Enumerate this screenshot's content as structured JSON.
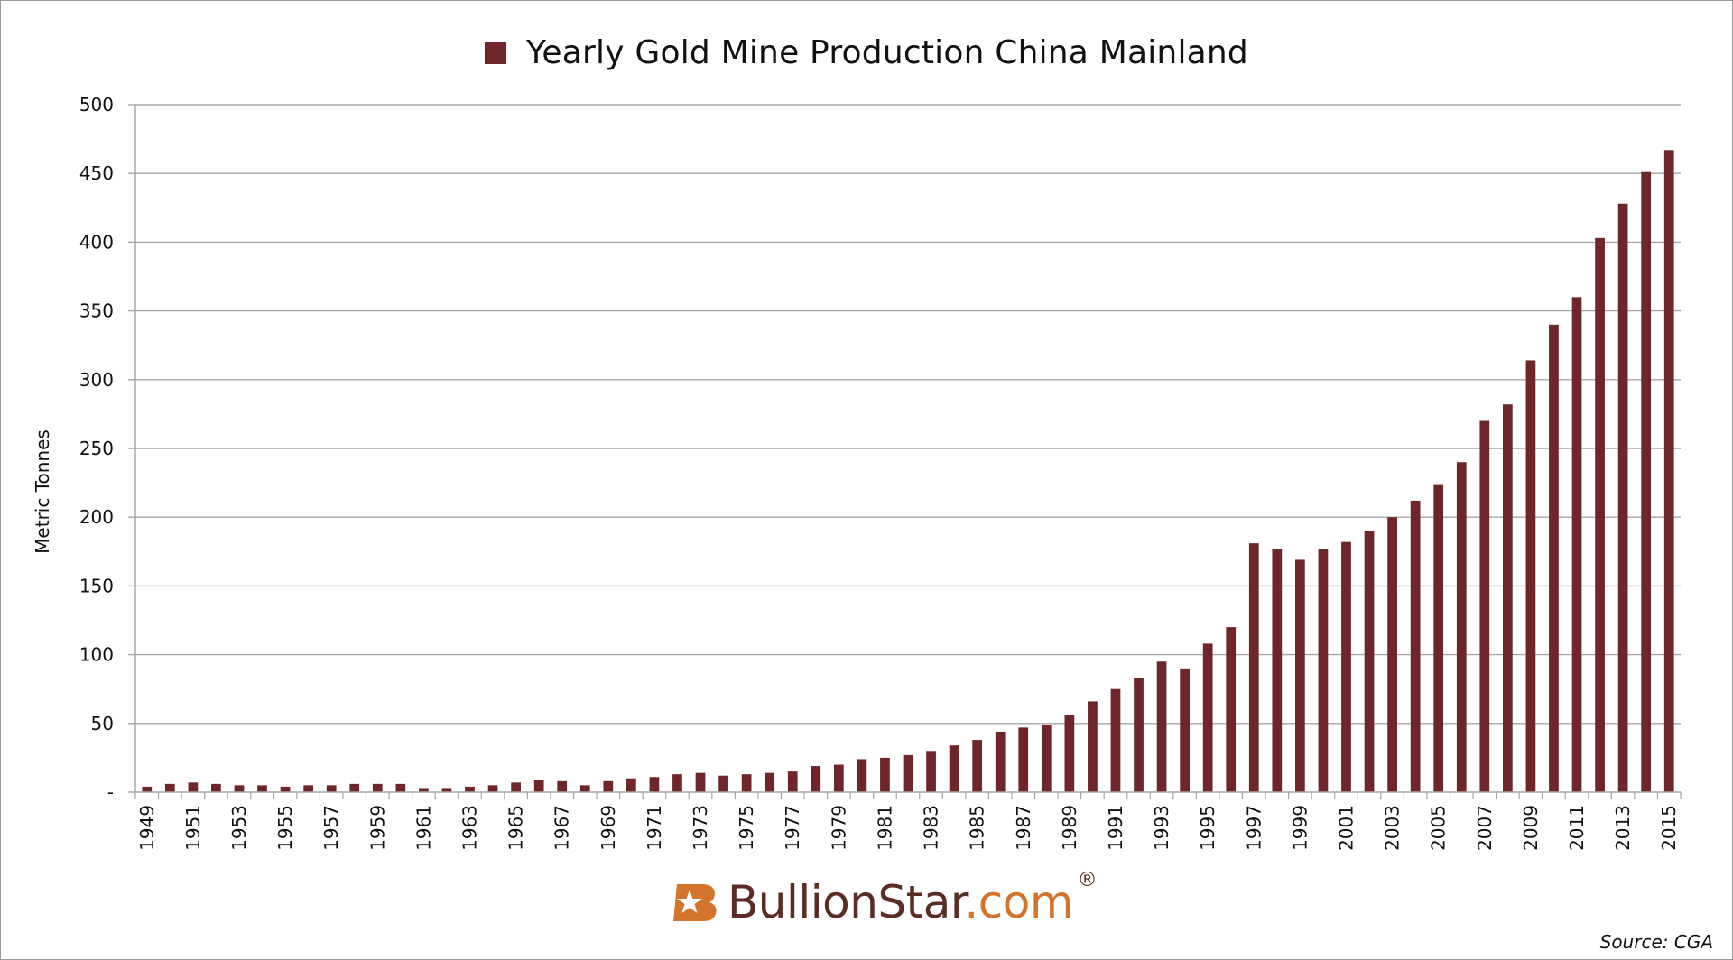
{
  "chart_data": {
    "type": "bar",
    "title": "",
    "legend": [
      "Yearly Gold Mine Production China Mainland"
    ],
    "legend_position": "top-center",
    "ylabel": "Metric Tonnes",
    "xlabel": "",
    "ylim": [
      0,
      500
    ],
    "yticks": [
      "-",
      "50",
      "100",
      "150",
      "200",
      "250",
      "300",
      "350",
      "400",
      "450",
      "500"
    ],
    "grid": true,
    "bar_color": "#6e2629",
    "categories": [
      "1949",
      "1950",
      "1951",
      "1952",
      "1953",
      "1954",
      "1955",
      "1956",
      "1957",
      "1958",
      "1959",
      "1960",
      "1961",
      "1962",
      "1963",
      "1964",
      "1965",
      "1966",
      "1967",
      "1968",
      "1969",
      "1970",
      "1971",
      "1972",
      "1973",
      "1974",
      "1975",
      "1976",
      "1977",
      "1978",
      "1979",
      "1980",
      "1981",
      "1982",
      "1983",
      "1984",
      "1985",
      "1986",
      "1987",
      "1988",
      "1989",
      "1990",
      "1991",
      "1992",
      "1993",
      "1994",
      "1995",
      "1996",
      "1997",
      "1998",
      "1999",
      "2000",
      "2001",
      "2002",
      "2003",
      "2004",
      "2005",
      "2006",
      "2007",
      "2008",
      "2009",
      "2010",
      "2011",
      "2012",
      "2013",
      "2014",
      "2015"
    ],
    "xtick_labels": [
      "1949",
      "1951",
      "1953",
      "1955",
      "1957",
      "1959",
      "1961",
      "1963",
      "1965",
      "1967",
      "1969",
      "1971",
      "1973",
      "1975",
      "1977",
      "1979",
      "1981",
      "1983",
      "1985",
      "1987",
      "1989",
      "1991",
      "1993",
      "1995",
      "1997",
      "1999",
      "2001",
      "2003",
      "2005",
      "2007",
      "2009",
      "2011",
      "2013",
      "2015"
    ],
    "series": [
      {
        "name": "Yearly Gold Mine Production China Mainland",
        "values": [
          4,
          6,
          7,
          6,
          5,
          5,
          4,
          5,
          5,
          6,
          6,
          6,
          3,
          3,
          4,
          5,
          7,
          9,
          8,
          5,
          8,
          10,
          11,
          13,
          14,
          12,
          13,
          14,
          15,
          19,
          20,
          24,
          25,
          27,
          30,
          34,
          38,
          44,
          47,
          49,
          56,
          66,
          75,
          83,
          95,
          90,
          108,
          120,
          181,
          177,
          169,
          177,
          182,
          190,
          200,
          212,
          224,
          240,
          270,
          282,
          314,
          340,
          360,
          403,
          428,
          451,
          467
        ]
      }
    ]
  },
  "branding": {
    "logo_name": "BullionStar",
    "logo_domain": ".com",
    "logo_registered": "®"
  },
  "footer": {
    "source": "Source: CGA"
  }
}
